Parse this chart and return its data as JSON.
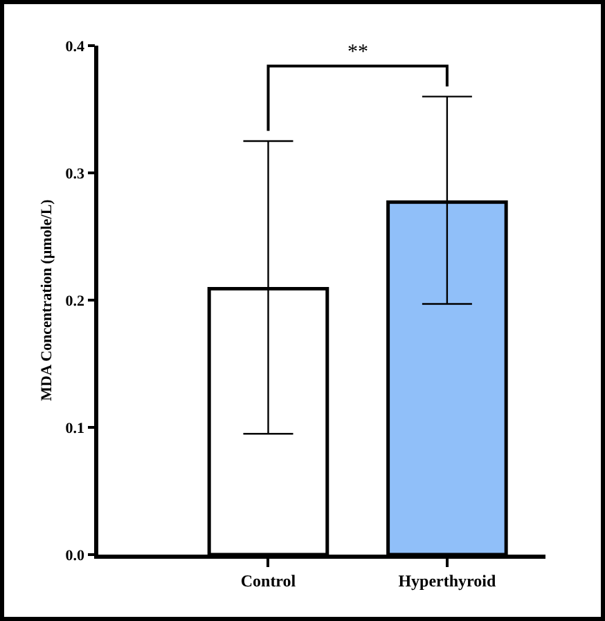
{
  "chart_data": {
    "type": "bar",
    "ylabel": "MDA Concentration (µmole/L)",
    "categories": [
      "Control",
      "Hyperthyroid"
    ],
    "values": [
      0.209,
      0.277
    ],
    "colors": [
      "#ffffff",
      "#90bff9"
    ],
    "errors": [
      [
        0.095,
        0.325
      ],
      [
        0.197,
        0.36
      ]
    ],
    "ylim": [
      0,
      0.4
    ],
    "yticks": [
      {
        "value": 0,
        "label": "0.0"
      },
      0.1,
      0.2,
      0.3,
      0.4
    ],
    "annotations": [
      "**"
    ],
    "grid": false,
    "legend": false
  }
}
